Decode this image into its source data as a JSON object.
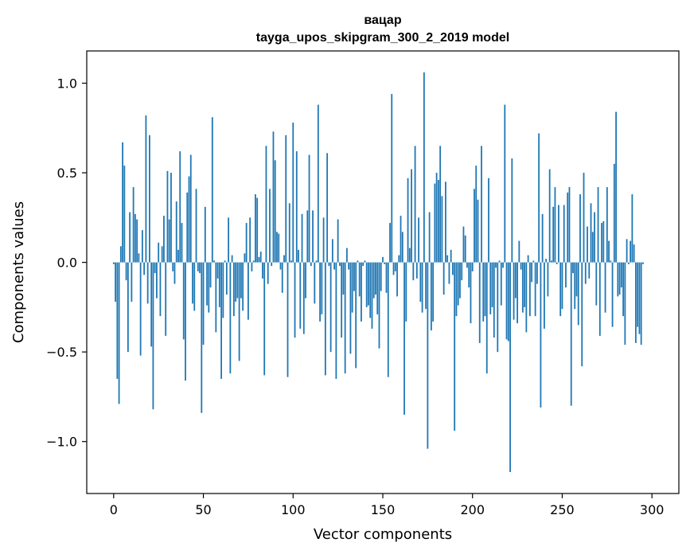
{
  "chart_data": {
    "type": "bar",
    "title_line1": "вацар",
    "title_line2": "tayga_upos_skipgram_300_2_2019 model",
    "xlabel": "Vector components",
    "ylabel": "Components values",
    "xlim": [
      -15,
      315
    ],
    "ylim": [
      -1.29,
      1.18
    ],
    "x_ticks": [
      0,
      50,
      100,
      150,
      200,
      250,
      300
    ],
    "x_tick_labels": [
      "0",
      "50",
      "100",
      "150",
      "200",
      "250",
      "300"
    ],
    "y_ticks": [
      -1.0,
      -0.5,
      0.0,
      0.5,
      1.0
    ],
    "y_tick_labels": [
      "−1.0",
      "−0.5",
      "0.0",
      "0.5",
      "1.0"
    ],
    "bar_color": "#1f77b4",
    "values": [
      -0.01,
      -0.22,
      -0.65,
      -0.79,
      0.09,
      0.67,
      0.54,
      -0.1,
      -0.5,
      0.28,
      -0.22,
      0.42,
      0.27,
      0.24,
      0.05,
      -0.52,
      0.18,
      -0.07,
      0.82,
      -0.23,
      0.71,
      -0.47,
      -0.82,
      -0.06,
      -0.2,
      0.11,
      -0.3,
      0.09,
      0.26,
      -0.41,
      0.51,
      0.24,
      0.5,
      -0.05,
      -0.12,
      0.34,
      0.07,
      0.62,
      0.22,
      -0.43,
      -0.66,
      0.39,
      0.48,
      0.6,
      -0.23,
      -0.27,
      0.41,
      -0.05,
      -0.06,
      -0.84,
      -0.46,
      0.31,
      -0.24,
      -0.28,
      -0.14,
      0.81,
      0.01,
      -0.39,
      -0.09,
      -0.25,
      -0.65,
      -0.31,
      0.01,
      -0.18,
      0.25,
      -0.62,
      0.04,
      -0.3,
      -0.22,
      -0.2,
      -0.55,
      -0.2,
      -0.27,
      0.05,
      0.22,
      -0.32,
      0.25,
      -0.05,
      0.01,
      0.38,
      0.36,
      0.03,
      0.06,
      -0.09,
      -0.63,
      0.65,
      -0.12,
      0.41,
      -0.02,
      0.73,
      0.57,
      0.17,
      0.16,
      -0.04,
      -0.17,
      0.04,
      0.71,
      -0.64,
      0.33,
      0.01,
      0.78,
      -0.42,
      0.62,
      0.07,
      -0.37,
      0.27,
      -0.4,
      -0.2,
      0.29,
      0.6,
      -0.02,
      0.29,
      -0.23,
      0.01,
      0.88,
      -0.33,
      -0.29,
      0.25,
      -0.63,
      0.61,
      -0.02,
      -0.5,
      0.13,
      -0.04,
      -0.65,
      0.24,
      -0.02,
      -0.42,
      -0.18,
      -0.62,
      0.08,
      -0.04,
      -0.51,
      -0.28,
      -0.16,
      -0.59,
      0.01,
      -0.19,
      -0.33,
      -0.02,
      0.01,
      -0.25,
      -0.24,
      -0.31,
      -0.37,
      -0.2,
      -0.18,
      -0.29,
      -0.48,
      -0.16,
      0.03,
      -0.01,
      -0.17,
      -0.64,
      0.22,
      0.94,
      -0.07,
      -0.05,
      -0.19,
      0.04,
      0.26,
      0.17,
      -0.85,
      -0.33,
      0.47,
      0.08,
      0.52,
      -0.1,
      0.65,
      -0.09,
      0.25,
      -0.22,
      -0.28,
      1.06,
      -0.26,
      -1.04,
      0.28,
      -0.38,
      -0.33,
      0.44,
      0.5,
      0.46,
      0.65,
      0.37,
      -0.18,
      0.45,
      0.04,
      -0.12,
      0.07,
      -0.07,
      -0.94,
      -0.3,
      -0.24,
      -0.2,
      -0.1,
      0.2,
      0.15,
      -0.03,
      -0.14,
      -0.34,
      -0.05,
      0.41,
      0.54,
      0.35,
      -0.45,
      0.65,
      -0.33,
      -0.3,
      -0.62,
      0.47,
      -0.29,
      -0.25,
      -0.42,
      -0.03,
      -0.5,
      0.01,
      -0.24,
      -0.03,
      0.88,
      -0.43,
      -0.44,
      -1.17,
      0.58,
      -0.32,
      -0.2,
      -0.34,
      0.12,
      -0.04,
      -0.28,
      -0.25,
      -0.39,
      0.04,
      -0.3,
      -0.11,
      0.01,
      -0.3,
      -0.12,
      0.72,
      -0.81,
      0.27,
      -0.37,
      0.02,
      -0.19,
      0.52,
      0.01,
      0.31,
      0.42,
      -0.01,
      0.32,
      -0.3,
      -0.26,
      0.32,
      -0.14,
      0.39,
      0.42,
      -0.8,
      -0.06,
      -0.26,
      -0.19,
      -0.35,
      0.38,
      -0.58,
      0.5,
      -0.12,
      0.2,
      -0.09,
      0.33,
      0.17,
      0.28,
      -0.24,
      0.42,
      -0.41,
      0.22,
      0.23,
      -0.28,
      0.42,
      0.12,
      0.01,
      -0.36,
      0.55,
      0.84,
      -0.19,
      -0.18,
      -0.14,
      -0.3,
      -0.46,
      0.13,
      -0.01,
      0.12,
      0.38,
      0.1,
      -0.45,
      -0.36,
      -0.4,
      -0.46,
      -0.01,
      0.0,
      0.0,
      0.0,
      0.0
    ]
  }
}
